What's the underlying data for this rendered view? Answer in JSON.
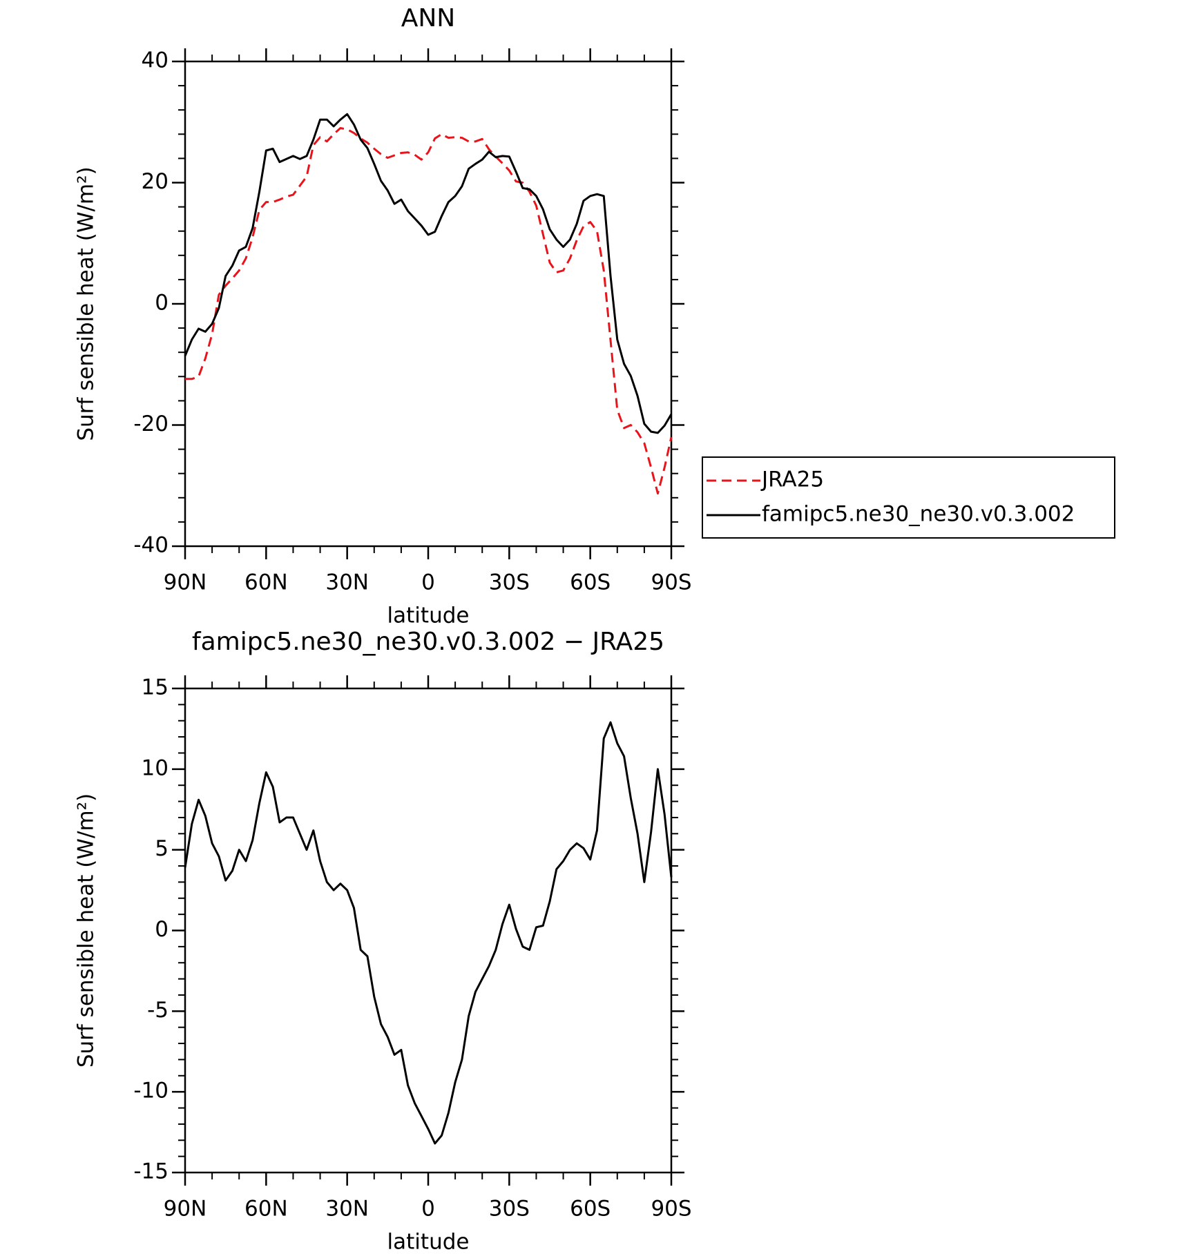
{
  "chart_data": [
    {
      "type": "line",
      "title": "ANN",
      "xlabel": "latitude",
      "ylabel": "Surf sensible heat (W/m²)",
      "x": [
        90,
        87.5,
        85,
        82.5,
        80,
        77.5,
        75,
        72.5,
        70,
        67.5,
        65,
        62.5,
        60,
        57.5,
        55,
        52.5,
        50,
        47.5,
        45,
        42.5,
        40,
        37.5,
        35,
        32.5,
        30,
        27.5,
        25,
        22.5,
        20,
        17.5,
        15,
        12.5,
        10,
        7.5,
        5,
        2.5,
        0,
        -2.5,
        -5,
        -7.5,
        -10,
        -12.5,
        -15,
        -17.5,
        -20,
        -22.5,
        -25,
        -27.5,
        -30,
        -32.5,
        -35,
        -37.5,
        -40,
        -42.5,
        -45,
        -47.5,
        -50,
        -52.5,
        -55,
        -57.5,
        -60,
        -62.5,
        -65,
        -67.5,
        -70,
        -72.5,
        -75,
        -77.5,
        -80,
        -82.5,
        -85,
        -87.5,
        -90
      ],
      "series": [
        {
          "name": "JRA25",
          "color": "#e8141b",
          "linestyle": "dashed",
          "values": [
            -12.4,
            -12.4,
            -12.0,
            -9,
            -5,
            1.5,
            3.0,
            4.2,
            5.5,
            7.5,
            11,
            15.5,
            16.8,
            16.8,
            17.2,
            17.7,
            18.0,
            19.5,
            21,
            26.2,
            27.5,
            26.8,
            28,
            29,
            28.8,
            28.2,
            27.3,
            26.6,
            25.6,
            24.7,
            24.1,
            24.5,
            24.9,
            25.0,
            24.6,
            23.8,
            25,
            27.3,
            28.0,
            27.4,
            27.5,
            27.4,
            26.8,
            26.8,
            27.2,
            25.5,
            24.3,
            23.2,
            22.0,
            20.2,
            20.0,
            18.5,
            16.2,
            11.5,
            6.8,
            5.2,
            5.5,
            7.5,
            10.5,
            12.8,
            13.5,
            12.0,
            5.5,
            -6,
            -17.5,
            -20.5,
            -20,
            -21.2,
            -23,
            -27,
            -31.3,
            -27,
            -22
          ]
        },
        {
          "name": "famipc5.ne30_ne30.v0.3.002",
          "color": "#000000",
          "linestyle": "solid",
          "values": [
            -8.6,
            -5.9,
            -4.1,
            -4.6,
            -3.3,
            -0.7,
            4.6,
            6.3,
            8.8,
            9.4,
            12.5,
            18.5,
            25.3,
            25.6,
            23.4,
            23.9,
            24.4,
            23.9,
            24.4,
            27.1,
            30.4,
            30.4,
            29.3,
            30.4,
            31.3,
            29.6,
            27.1,
            25.7,
            23.1,
            20.3,
            18.7,
            16.5,
            17.2,
            15.3,
            14.1,
            12.9,
            11.4,
            11.9,
            14.5,
            16.8,
            17.8,
            19.4,
            22.3,
            23.1,
            23.8,
            25.1,
            24.2,
            24.4,
            24.3,
            21.8,
            19.1,
            18.9,
            17.8,
            15.6,
            12.3,
            10.6,
            9.4,
            10.6,
            13.2,
            17.0,
            17.8,
            18.1,
            17.8,
            4.6,
            -5.9,
            -9.9,
            -11.9,
            -15.2,
            -19.8,
            -21.1,
            -21.3,
            -20.1,
            -18.2
          ]
        }
      ],
      "xlim": [
        90,
        -90
      ],
      "xticks": [
        {
          "value": 90,
          "label": "90N"
        },
        {
          "value": 60,
          "label": "60N"
        },
        {
          "value": 30,
          "label": "30N"
        },
        0,
        {
          "value": -30,
          "label": "30S"
        },
        {
          "value": -60,
          "label": "60S"
        },
        {
          "value": -90,
          "label": "90S"
        }
      ],
      "ylim": [
        -40,
        40
      ],
      "yticks": [
        -40,
        -20,
        0,
        20,
        40
      ],
      "legend": "right"
    },
    {
      "type": "line",
      "title": "famipc5.ne30_ne30.v0.3.002 − JRA25",
      "xlabel": "latitude",
      "ylabel": "Surf sensible heat (W/m²)",
      "x": [
        90,
        87.5,
        85,
        82.5,
        80,
        77.5,
        75,
        72.5,
        70,
        67.5,
        65,
        62.5,
        60,
        57.5,
        55,
        52.5,
        50,
        47.5,
        45,
        42.5,
        40,
        37.5,
        35,
        32.5,
        30,
        27.5,
        25,
        22.5,
        20,
        17.5,
        15,
        12.5,
        10,
        7.5,
        5,
        2.5,
        0,
        -2.5,
        -5,
        -7.5,
        -10,
        -12.5,
        -15,
        -17.5,
        -20,
        -22.5,
        -25,
        -27.5,
        -30,
        -32.5,
        -35,
        -37.5,
        -40,
        -42.5,
        -45,
        -47.5,
        -50,
        -52.5,
        -55,
        -57.5,
        -60,
        -62.5,
        -65,
        -67.5,
        -70,
        -72.5,
        -75,
        -77.5,
        -80,
        -82.5,
        -85,
        -87.5,
        -90
      ],
      "series": [
        {
          "color": "#000000",
          "linestyle": "solid",
          "values": [
            3.9,
            6.6,
            8.1,
            7.1,
            5.4,
            4.6,
            3.1,
            3.7,
            5.0,
            4.3,
            5.6,
            7.9,
            9.8,
            8.9,
            6.7,
            7.0,
            7.0,
            6.0,
            5.0,
            6.2,
            4.3,
            3.0,
            2.5,
            2.9,
            2.5,
            1.4,
            -1.2,
            -1.6,
            -4.1,
            -5.8,
            -6.6,
            -7.7,
            -7.4,
            -9.6,
            -10.7,
            -11.5,
            -12.3,
            -13.2,
            -12.7,
            -11.3,
            -9.4,
            -8.0,
            -5.3,
            -3.8,
            -3.0,
            -2.2,
            -1.2,
            0.4,
            1.6,
            0.1,
            -1.0,
            -1.2,
            0.2,
            0.3,
            1.8,
            3.8,
            4.3,
            5.0,
            5.4,
            5.1,
            4.4,
            6.2,
            11.9,
            12.9,
            11.6,
            10.8,
            8.2,
            6.0,
            3.0,
            6.1,
            10.0,
            7.2,
            3.3
          ]
        }
      ],
      "xlim": [
        90,
        -90
      ],
      "xticks": [
        {
          "value": 90,
          "label": "90N"
        },
        {
          "value": 60,
          "label": "60N"
        },
        {
          "value": 30,
          "label": "30N"
        },
        0,
        {
          "value": -30,
          "label": "30S"
        },
        {
          "value": -60,
          "label": "60S"
        },
        {
          "value": -90,
          "label": "90S"
        }
      ],
      "ylim": [
        -15,
        15
      ],
      "yticks": [
        -15,
        -10,
        -5,
        0,
        5,
        10,
        15
      ]
    }
  ]
}
